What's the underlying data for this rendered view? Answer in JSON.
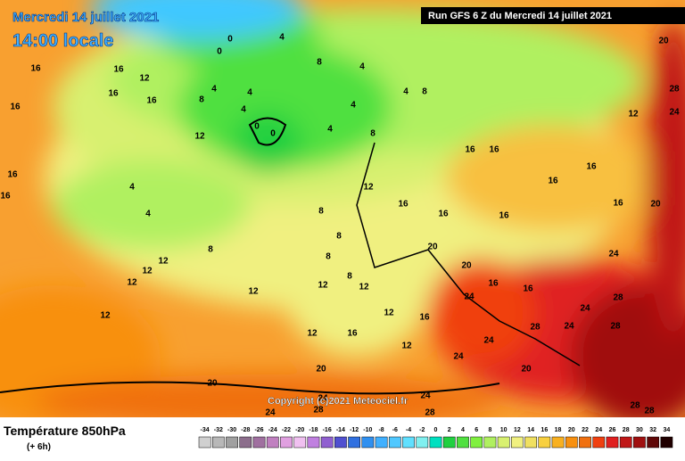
{
  "header": {
    "date_line": "Mercredi 14 juillet 2021",
    "local_time": "14:00 locale",
    "run": "Run GFS 6 Z du Mercredi 14 juillet 2021"
  },
  "copyright": "Copyright (c)2021 Meteociel.fr",
  "legend": {
    "title": "Température 850hPa",
    "offset": "(+ 6h)",
    "scale": [
      -34,
      -32,
      -30,
      -28,
      -26,
      -24,
      -22,
      -20,
      -18,
      -16,
      -14,
      -12,
      -10,
      -8,
      -6,
      -4,
      -2,
      0,
      2,
      4,
      6,
      8,
      10,
      12,
      14,
      16,
      18,
      20,
      22,
      24,
      26,
      28,
      30,
      32,
      34
    ],
    "colors": [
      "#d0d0d0",
      "#b8b8b8",
      "#a0a0a0",
      "#8c6e8c",
      "#a070a0",
      "#c080c0",
      "#e0a0e0",
      "#f0c0f0",
      "#c080e0",
      "#9060d0",
      "#5050d0",
      "#3070e0",
      "#3090f0",
      "#40b0ff",
      "#50c8ff",
      "#60e0ff",
      "#80f0f0",
      "#00e0c0",
      "#20d040",
      "#50e040",
      "#80f040",
      "#b0f060",
      "#d8f070",
      "#f0f080",
      "#f0e060",
      "#f8d040",
      "#f8b020",
      "#f89010",
      "#f07010",
      "#f04010",
      "#e02020",
      "#c01818",
      "#a01010",
      "#600808",
      "#200000"
    ]
  },
  "contour_labels": [
    16,
    16,
    12,
    16,
    16,
    16,
    16,
    16,
    12,
    8,
    4,
    0,
    0,
    4,
    8,
    4,
    4,
    4,
    0,
    0,
    4,
    4,
    4,
    8,
    8,
    4,
    4,
    8,
    12,
    12,
    12,
    12,
    12,
    8,
    8,
    8,
    8,
    12,
    16,
    16,
    16,
    16,
    16,
    16,
    16,
    16,
    20,
    20,
    16,
    16,
    24,
    24,
    28,
    24,
    24,
    28,
    24,
    28,
    20,
    12,
    24,
    28,
    20,
    20,
    20,
    24,
    24,
    20,
    24,
    28,
    28,
    24,
    28,
    28,
    12,
    16,
    12,
    12,
    16,
    12,
    12
  ]
}
